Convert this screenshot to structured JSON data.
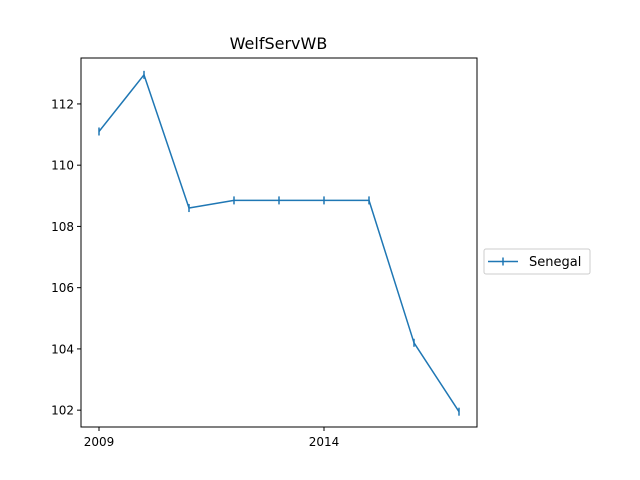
{
  "chart_data": {
    "type": "line",
    "title": "WelfServWB",
    "xlabel": "",
    "ylabel": "",
    "x": [
      2009,
      2010,
      2011,
      2012,
      2013,
      2014,
      2015,
      2016,
      2017
    ],
    "series": [
      {
        "name": "Senegal",
        "color": "#1f77b4",
        "marker": "vline",
        "values": [
          111.1,
          112.95,
          108.6,
          108.85,
          108.85,
          108.85,
          108.85,
          104.2,
          101.95
        ]
      }
    ],
    "xlim": [
      2008.6,
      2017.4
    ],
    "ylim": [
      101.45,
      113.5
    ],
    "xticks": [
      2009,
      2014
    ],
    "xtick_labels": [
      "2009",
      "2014"
    ],
    "yticks": [
      102,
      104,
      106,
      108,
      110,
      112
    ],
    "ytick_labels": [
      "102",
      "104",
      "106",
      "108",
      "110",
      "112"
    ],
    "grid": false,
    "legend": "outside-right"
  }
}
